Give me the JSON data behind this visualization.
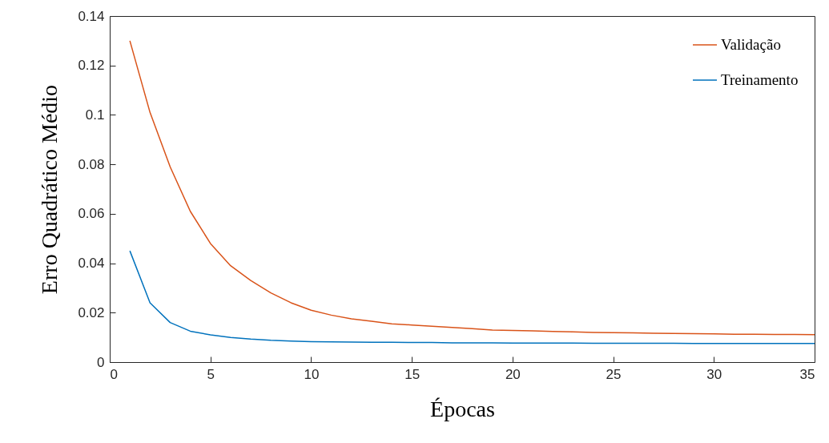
{
  "chart_data": {
    "type": "line",
    "xlabel": "Épocas",
    "ylabel": "Erro Quadrático Médio",
    "x": [
      1,
      2,
      3,
      4,
      5,
      6,
      7,
      8,
      9,
      10,
      11,
      12,
      13,
      14,
      15,
      16,
      17,
      18,
      19,
      20,
      21,
      22,
      23,
      24,
      25,
      26,
      27,
      28,
      29,
      30,
      31,
      32,
      33,
      34,
      35
    ],
    "series": [
      {
        "name": "Validação",
        "color": "#d95319",
        "values": [
          0.13,
          0.101,
          0.079,
          0.061,
          0.048,
          0.039,
          0.033,
          0.028,
          0.024,
          0.021,
          0.019,
          0.0175,
          0.0165,
          0.0155,
          0.015,
          0.0145,
          0.014,
          0.0135,
          0.013,
          0.0128,
          0.0126,
          0.0124,
          0.0122,
          0.012,
          0.0119,
          0.0118,
          0.0117,
          0.0116,
          0.0115,
          0.0114,
          0.0113,
          0.0113,
          0.0112,
          0.0112,
          0.0111
        ]
      },
      {
        "name": "Treinamento",
        "color": "#0072bd",
        "values": [
          0.045,
          0.024,
          0.016,
          0.0125,
          0.011,
          0.01,
          0.0093,
          0.0088,
          0.0085,
          0.0083,
          0.0082,
          0.0081,
          0.008,
          0.008,
          0.0079,
          0.0079,
          0.0078,
          0.0078,
          0.0078,
          0.0077,
          0.0077,
          0.0077,
          0.0077,
          0.0076,
          0.0076,
          0.0076,
          0.0076,
          0.0076,
          0.0075,
          0.0075,
          0.0075,
          0.0075,
          0.0075,
          0.0075,
          0.0075
        ]
      }
    ],
    "xlim": [
      0,
      35
    ],
    "xticks": [
      0,
      5,
      10,
      15,
      20,
      25,
      30,
      35
    ],
    "ylim": [
      0,
      0.14
    ],
    "yticks": [
      0,
      0.02,
      0.04,
      0.06,
      0.08,
      0.1,
      0.12,
      0.14
    ],
    "grid": false,
    "legend": "top right",
    "marker": "none",
    "line_style": "solid"
  }
}
